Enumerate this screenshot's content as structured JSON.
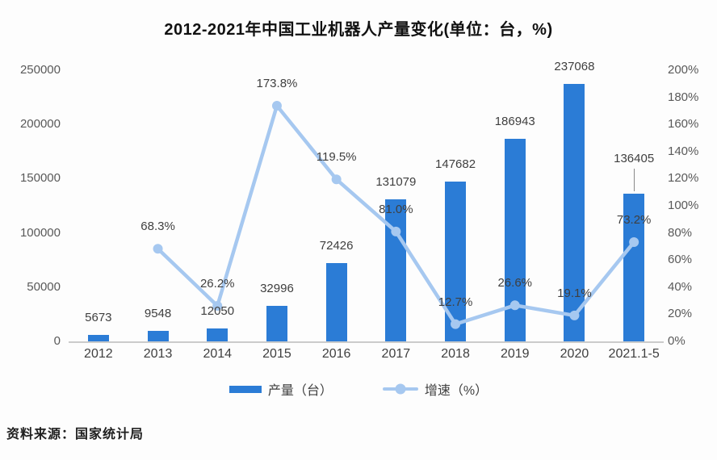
{
  "title": "2012-2021年中国工业机器人产量变化(单位：台，%)",
  "source": "资料来源：国家统计局",
  "legend": {
    "bars": "产量（台）",
    "line": "增速（%）"
  },
  "colors": {
    "bar": "#2B7CD6",
    "line": "#A6C8F0",
    "axis_line": "#CBCBCB",
    "axis_text": "#595959",
    "data_label": "#3F3F3F",
    "title_text": "#111111"
  },
  "chart_data": {
    "type": "bar+line",
    "title": "2012-2021年中国工业机器人产量变化(单位：台，%)",
    "categories": [
      "2012",
      "2013",
      "2014",
      "2015",
      "2016",
      "2017",
      "2018",
      "2019",
      "2020",
      "2021.1-5"
    ],
    "series": [
      {
        "name": "产量（台）",
        "type": "bar",
        "axis": "left",
        "values": [
          5673,
          9548,
          12050,
          32996,
          72426,
          131079,
          147682,
          186943,
          237068,
          136405
        ]
      },
      {
        "name": "增速（%）",
        "type": "line",
        "axis": "right",
        "values": [
          null,
          68.3,
          26.2,
          173.8,
          119.5,
          81.0,
          12.7,
          26.6,
          19.1,
          73.2
        ]
      }
    ],
    "bar_labels": [
      "5673",
      "9548",
      "12050",
      "32996",
      "72426",
      "131079",
      "147682",
      "186943",
      "237068",
      "136405"
    ],
    "line_labels": [
      null,
      "68.3%",
      "26.2%",
      "173.8%",
      "119.5%",
      "81.0%",
      "12.7%",
      "26.6%",
      "19.1%",
      "73.2%"
    ],
    "left_axis": {
      "min": 0,
      "max": 250000,
      "step": 50000,
      "ticks": [
        "0",
        "50000",
        "100000",
        "150000",
        "200000",
        "250000"
      ]
    },
    "right_axis": {
      "min": 0,
      "max": 200,
      "step": 20,
      "ticks": [
        "0%",
        "20%",
        "40%",
        "60%",
        "80%",
        "100%",
        "120%",
        "140%",
        "160%",
        "180%",
        "200%"
      ]
    },
    "grid": false,
    "legend_position": "bottom"
  }
}
